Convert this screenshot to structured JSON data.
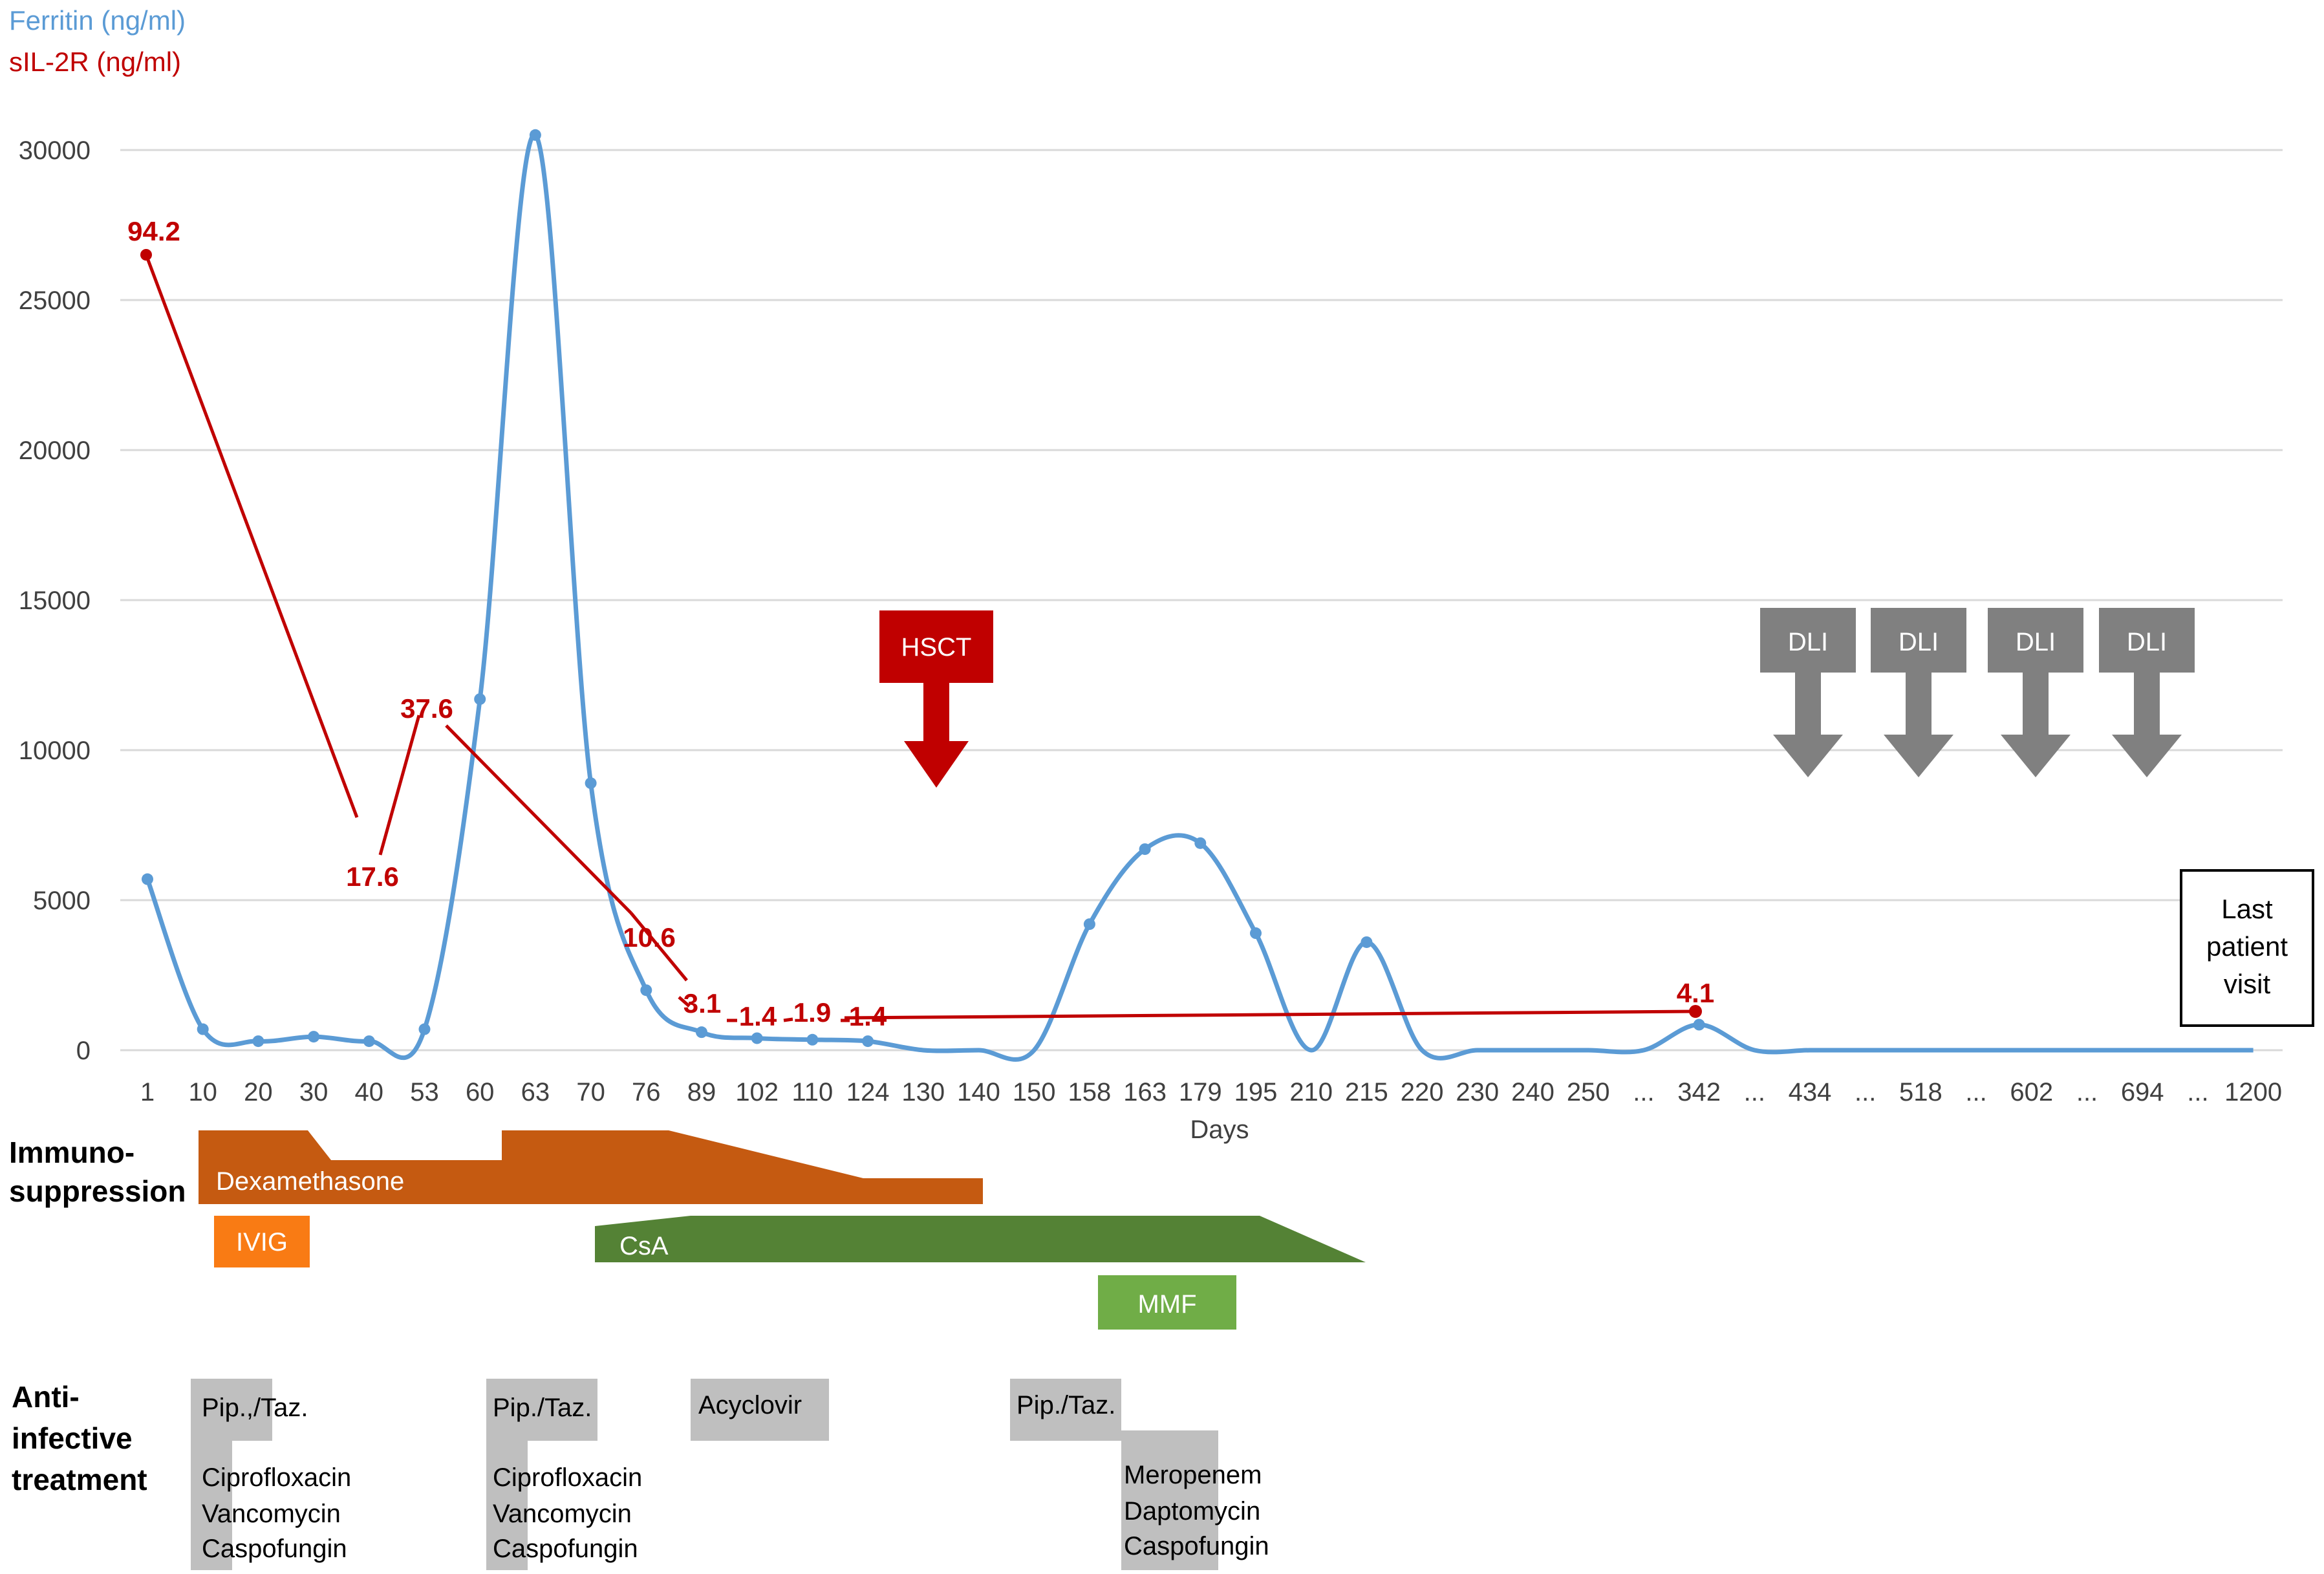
{
  "chart_data": {
    "type": "line",
    "xlabel": "Days",
    "categories": [
      "1",
      "10",
      "20",
      "30",
      "40",
      "53",
      "60",
      "63",
      "70",
      "76",
      "89",
      "102",
      "110",
      "124",
      "130",
      "140",
      "150",
      "158",
      "163",
      "179",
      "195",
      "210",
      "215",
      "220",
      "230",
      "240",
      "250",
      "...",
      "342",
      "...",
      "434",
      "...",
      "518",
      "...",
      "602",
      "...",
      "694",
      "...",
      "1200"
    ],
    "ylim": [
      0,
      30000
    ],
    "yticks": [
      "0",
      "5000",
      "10000",
      "15000",
      "20000",
      "25000",
      "30000"
    ],
    "grid": true,
    "series": [
      {
        "name": "Ferritin (ng/ml)",
        "color": "#5b9bd5",
        "values": [
          5700,
          700,
          300,
          450,
          300,
          700,
          11700,
          30500,
          8900,
          2000,
          600,
          400,
          350,
          300,
          0,
          0,
          0,
          4200,
          6700,
          6900,
          3900,
          0,
          3600,
          0,
          0,
          0,
          0,
          0,
          850,
          0,
          0,
          0,
          0,
          0,
          0,
          0,
          0,
          0,
          0
        ],
        "markers": [
          0,
          1,
          2,
          3,
          4,
          5,
          6,
          7,
          8,
          9,
          10,
          11,
          12,
          13,
          17,
          18,
          19,
          20,
          22,
          28
        ]
      },
      {
        "name": "sIL-2R (ng/ml)",
        "color": "#c00000",
        "points": [
          {
            "x": "1",
            "label": "94.2"
          },
          {
            "x": "40",
            "label": "17.6"
          },
          {
            "x": "53",
            "label": "37.6"
          },
          {
            "x": "76",
            "label": "10.6"
          },
          {
            "x": "89",
            "label": "3.1"
          },
          {
            "x": "102",
            "label": "1.4"
          },
          {
            "x": "110",
            "label": "1.9"
          },
          {
            "x": "124",
            "label": "1.4"
          },
          {
            "x": "342",
            "label": "4.1"
          }
        ]
      }
    ],
    "annotations": {
      "hsct": {
        "label": "HSCT",
        "color": "#c00000"
      },
      "dli": {
        "labels": [
          "DLI",
          "DLI",
          "DLI",
          "DLI"
        ],
        "color": "#808080"
      },
      "last_visit": "Last\npatient\nvisit"
    }
  },
  "sections": {
    "immuno": {
      "label_lines": [
        "Immuno-",
        "suppression"
      ],
      "bars": [
        {
          "name": "Dexamethasone",
          "color": "#c55a11"
        },
        {
          "name": "IVIG",
          "color": "#f97b14"
        },
        {
          "name": "CsA",
          "color": "#548235"
        },
        {
          "name": "MMF",
          "color": "#70ad47"
        }
      ]
    },
    "anti": {
      "label_lines": [
        "Anti-",
        "infective",
        "treatment"
      ],
      "color": "#bfbfbf",
      "groups": [
        {
          "header": "Pip.,/Taz.",
          "drugs": [
            "Ciprofloxacin",
            "Vancomycin",
            "Caspofungin"
          ]
        },
        {
          "header": "Pip./Taz.",
          "drugs": [
            "Ciprofloxacin",
            "Vancomycin",
            "Caspofungin"
          ]
        },
        {
          "header": "Acyclovir",
          "drugs": []
        },
        {
          "header": "Pip./Taz.",
          "drugs": [
            "Meropenem",
            "Daptomycin",
            "Caspofungin"
          ]
        }
      ]
    }
  }
}
